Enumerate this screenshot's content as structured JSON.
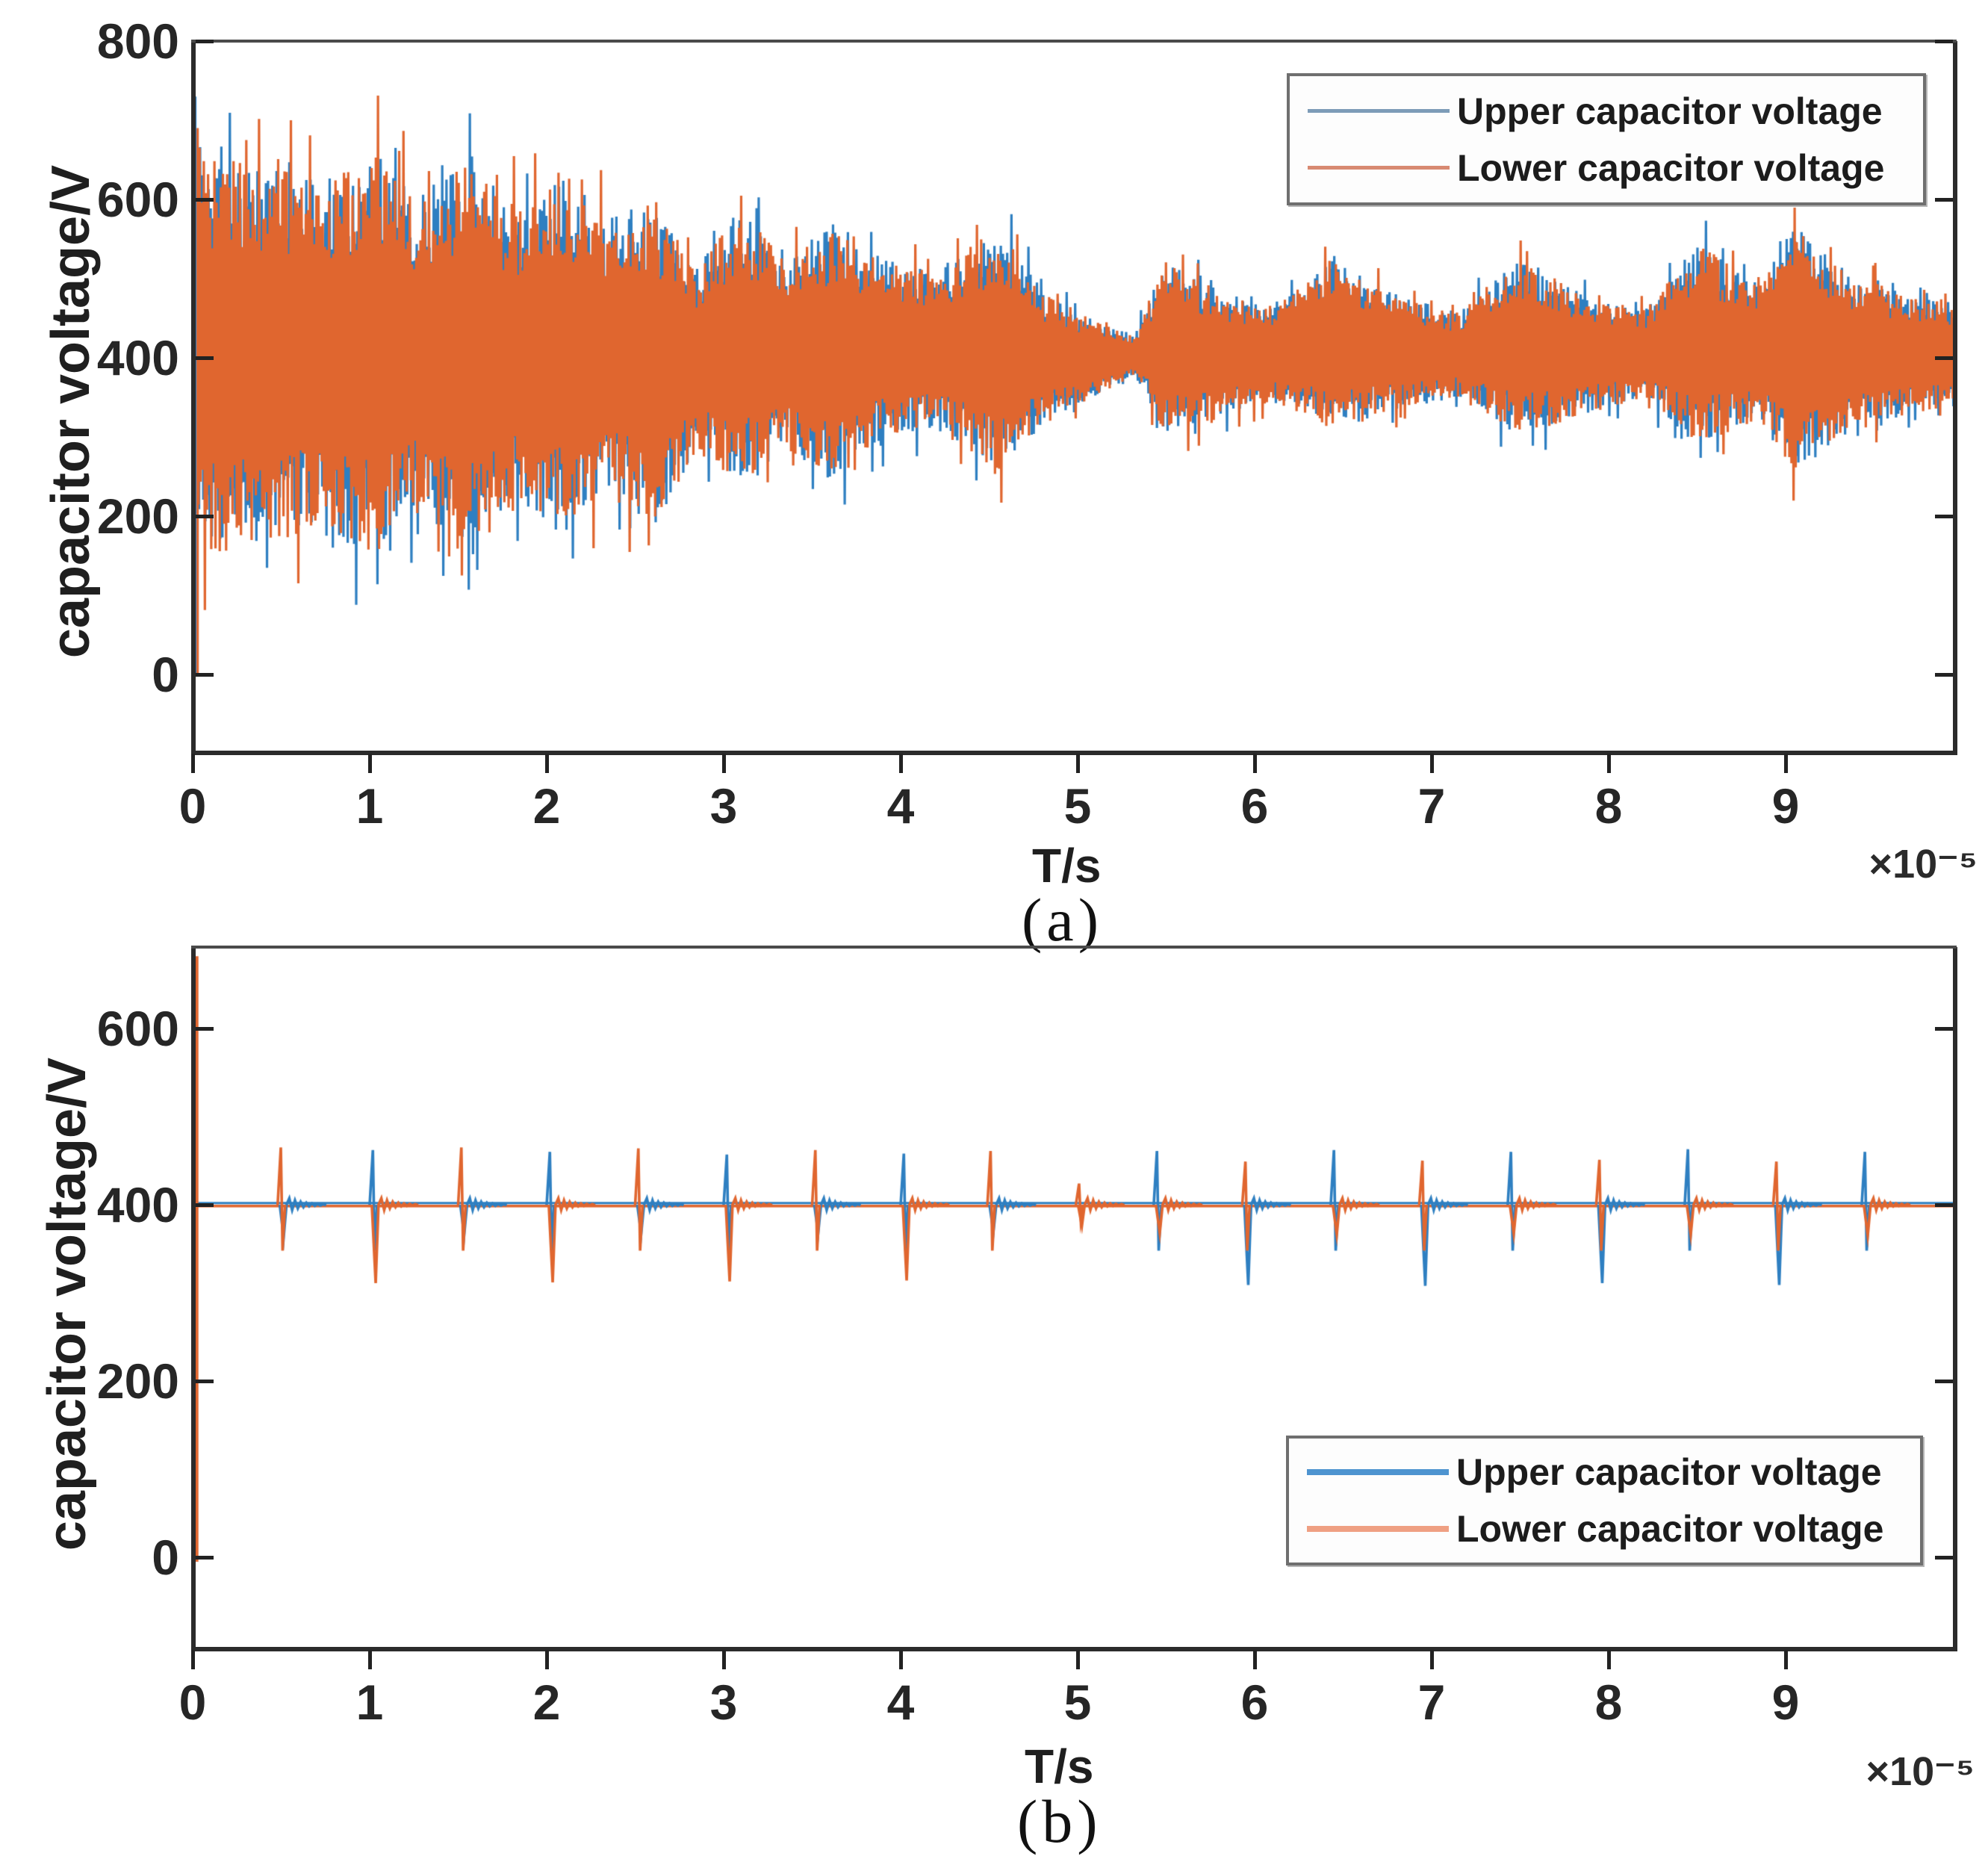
{
  "figure": {
    "ylabel_shared": "capacitor voltage/V",
    "xlabel_shared": "T/s"
  },
  "chart_data": [
    {
      "panel": "a",
      "type": "line",
      "panel_label": "(a)",
      "title": "",
      "xlabel": "T/s",
      "ylabel": "capacitor voltage/V",
      "x_multiplier": "×10⁻⁵",
      "x_unit": "s",
      "y_unit": "V",
      "x_ticks": [
        0,
        1,
        2,
        3,
        4,
        5,
        6,
        7,
        8,
        9
      ],
      "y_ticks": [
        0,
        200,
        400,
        600,
        800
      ],
      "x_range": [
        0,
        9.96
      ],
      "y_range": [
        -96,
        800
      ],
      "grid": false,
      "legend": {
        "position": "top-right",
        "entries": [
          {
            "label": "Upper capacitor voltage",
            "color": "#7d9cb8"
          },
          {
            "label": "Lower capacitor voltage",
            "color": "#d88a72"
          }
        ]
      },
      "colors": {
        "upper": "#2e7fc1",
        "lower": "#e0662f"
      },
      "series": [
        {
          "name": "Upper capacitor voltage",
          "key": "upper",
          "initial_transient": {
            "t": 0.015,
            "from": 0,
            "to": 730
          }
        },
        {
          "name": "Lower capacitor voltage",
          "key": "lower",
          "initial_transient": {
            "t": 0.028,
            "from": 0,
            "to": 690
          }
        }
      ],
      "oscillation": {
        "baseline": 400,
        "description": "dense high-frequency oscillation of both capacitor voltages around 400 V; initial envelope ~160-690 V decays toward ~400±25 V near t=5.3×10⁻⁵ s, then periodic bursts (~every 0.5×10⁻⁵ s) of ±100-150 V persist to the end",
        "envelope": [
          [
            0.03,
            160,
            690
          ],
          [
            0.1,
            150,
            660
          ],
          [
            0.35,
            165,
            645
          ],
          [
            0.7,
            180,
            625
          ],
          [
            1.05,
            145,
            660
          ],
          [
            1.25,
            200,
            605
          ],
          [
            1.55,
            150,
            650
          ],
          [
            1.85,
            215,
            590
          ],
          [
            2.1,
            175,
            635
          ],
          [
            2.35,
            235,
            575
          ],
          [
            2.6,
            185,
            605
          ],
          [
            2.85,
            280,
            520
          ],
          [
            3.1,
            240,
            585
          ],
          [
            3.35,
            285,
            535
          ],
          [
            3.6,
            240,
            565
          ],
          [
            3.9,
            295,
            525
          ],
          [
            4.2,
            310,
            510
          ],
          [
            4.55,
            255,
            565
          ],
          [
            4.85,
            325,
            475
          ],
          [
            5.1,
            350,
            452
          ],
          [
            5.32,
            378,
            428
          ],
          [
            5.5,
            300,
            525
          ],
          [
            5.75,
            320,
            490
          ],
          [
            6.1,
            345,
            462
          ],
          [
            6.45,
            305,
            530
          ],
          [
            6.75,
            330,
            485
          ],
          [
            7.15,
            350,
            458
          ],
          [
            7.5,
            300,
            528
          ],
          [
            7.85,
            328,
            480
          ],
          [
            8.2,
            348,
            462
          ],
          [
            8.5,
            290,
            545
          ],
          [
            8.85,
            320,
            492
          ],
          [
            9.05,
            255,
            572
          ],
          [
            9.4,
            308,
            502
          ],
          [
            9.7,
            330,
            482
          ],
          [
            9.96,
            338,
            472
          ]
        ]
      }
    },
    {
      "panel": "b",
      "type": "line",
      "panel_label": "(b)",
      "title": "",
      "xlabel": "T/s",
      "ylabel": "capacitor voltage/V",
      "x_multiplier": "×10⁻⁵",
      "x_unit": "s",
      "y_unit": "V",
      "x_ticks": [
        0,
        1,
        2,
        3,
        4,
        5,
        6,
        7,
        8,
        9
      ],
      "y_ticks": [
        0,
        200,
        400,
        600
      ],
      "x_range": [
        0,
        9.96
      ],
      "y_range": [
        -102,
        692
      ],
      "grid": false,
      "legend": {
        "position": "bottom-right",
        "entries": [
          {
            "label": "Upper capacitor voltage",
            "color": "#4e94d0"
          },
          {
            "label": "Lower capacitor voltage",
            "color": "#efa083"
          }
        ]
      },
      "colors": {
        "upper": "#2e7fc1",
        "lower": "#e0662f"
      },
      "baseline": 400,
      "baselines": {
        "upper": 402,
        "lower": 398.5
      },
      "initial_transients": [
        {
          "series": "upper",
          "t": 0.012,
          "from": 0,
          "to": 660
        },
        {
          "series": "lower",
          "t": 0.022,
          "from": -5,
          "to": 682
        }
      ],
      "spikes": [
        {
          "t": 0.51,
          "up": {
            "series": "lower",
            "v": 465
          },
          "down": {
            "series": "upper",
            "v": 363
          }
        },
        {
          "t": 1.03,
          "up": {
            "series": "upper",
            "v": 462
          },
          "down": {
            "series": "lower",
            "v": 311
          }
        },
        {
          "t": 1.53,
          "up": {
            "series": "lower",
            "v": 465
          },
          "down": {
            "series": "upper",
            "v": 366
          }
        },
        {
          "t": 2.03,
          "up": {
            "series": "upper",
            "v": 460
          },
          "down": {
            "series": "lower",
            "v": 312
          }
        },
        {
          "t": 2.53,
          "up": {
            "series": "lower",
            "v": 464
          },
          "down": {
            "series": "upper",
            "v": 367
          }
        },
        {
          "t": 3.03,
          "up": {
            "series": "upper",
            "v": 457
          },
          "down": {
            "series": "lower",
            "v": 313
          }
        },
        {
          "t": 3.53,
          "up": {
            "series": "lower",
            "v": 462
          },
          "down": {
            "series": "upper",
            "v": 368
          }
        },
        {
          "t": 4.03,
          "up": {
            "series": "upper",
            "v": 458
          },
          "down": {
            "series": "lower",
            "v": 314
          }
        },
        {
          "t": 4.52,
          "up": {
            "series": "lower",
            "v": 461
          },
          "down": {
            "series": "upper",
            "v": 369
          }
        },
        {
          "t": 5.02,
          "up": {
            "series": "lower",
            "v": 424
          },
          "down": {
            "series": "lower",
            "v": 376
          }
        },
        {
          "t": 5.46,
          "up": {
            "series": "upper",
            "v": 461
          },
          "down": {
            "series": "lower",
            "v": 368
          }
        },
        {
          "t": 5.96,
          "up": {
            "series": "lower",
            "v": 449
          },
          "down": {
            "series": "upper",
            "v": 309
          }
        },
        {
          "t": 6.46,
          "up": {
            "series": "upper",
            "v": 462
          },
          "down": {
            "series": "lower",
            "v": 366
          }
        },
        {
          "t": 6.96,
          "up": {
            "series": "lower",
            "v": 450
          },
          "down": {
            "series": "upper",
            "v": 308
          }
        },
        {
          "t": 7.46,
          "up": {
            "series": "upper",
            "v": 460
          },
          "down": {
            "series": "lower",
            "v": 367
          }
        },
        {
          "t": 7.96,
          "up": {
            "series": "lower",
            "v": 451
          },
          "down": {
            "series": "upper",
            "v": 311
          }
        },
        {
          "t": 8.46,
          "up": {
            "series": "upper",
            "v": 463
          },
          "down": {
            "series": "lower",
            "v": 366
          }
        },
        {
          "t": 8.96,
          "up": {
            "series": "lower",
            "v": 449
          },
          "down": {
            "series": "upper",
            "v": 309
          }
        },
        {
          "t": 9.46,
          "up": {
            "series": "upper",
            "v": 460
          },
          "down": {
            "series": "lower",
            "v": 365
          }
        }
      ]
    }
  ]
}
